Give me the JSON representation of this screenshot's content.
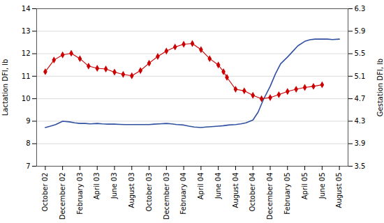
{
  "chart_data": {
    "type": "line",
    "xlim": [
      -0.5,
      17.5
    ],
    "xticks": [
      {
        "value": 0,
        "label": "October 02"
      },
      {
        "value": 1,
        "label": "December 02"
      },
      {
        "value": 2,
        "label": "February 03"
      },
      {
        "value": 3,
        "label": "April 03"
      },
      {
        "value": 4,
        "label": "June 03"
      },
      {
        "value": 5,
        "label": "August 03"
      },
      {
        "value": 6,
        "label": "October 03"
      },
      {
        "value": 7,
        "label": "December 03"
      },
      {
        "value": 8,
        "label": "February 04"
      },
      {
        "value": 9,
        "label": "April 04"
      },
      {
        "value": 10,
        "label": "June 04"
      },
      {
        "value": 11,
        "label": "August 04"
      },
      {
        "value": 12,
        "label": "October 04"
      },
      {
        "value": 13,
        "label": "December 04"
      },
      {
        "value": 14,
        "label": "February 05"
      },
      {
        "value": 15,
        "label": "April 05"
      },
      {
        "value": 16,
        "label": "June 05"
      },
      {
        "value": 17,
        "label": "August 05"
      }
    ],
    "ylabel": "Lactation DFI, lb",
    "ylim": [
      7,
      14
    ],
    "yticks": [
      7,
      8,
      9,
      10,
      11,
      12,
      13,
      14
    ],
    "y2label": "Gestation DFI, lb",
    "y2lim": [
      3.5,
      6.3
    ],
    "y2ticks": [
      3.5,
      3.9,
      4.3,
      4.7,
      5.1,
      5.5,
      5.9,
      6.3
    ],
    "grid": true,
    "series": [
      {
        "color": "#3050A0",
        "line_style": "solid",
        "x": [
          0,
          0.3,
          0.6,
          1,
          1.4,
          1.7,
          2,
          2.3,
          2.6,
          3,
          3.3,
          3.6,
          4,
          4.3,
          4.6,
          5,
          5.3,
          5.6,
          6,
          6.3,
          6.6,
          7,
          7.3,
          7.6,
          8,
          8.3,
          8.6,
          9,
          9.3,
          9.6,
          10,
          10.3,
          10.6,
          11,
          11.3,
          11.6,
          12,
          12.3,
          12.6,
          13,
          13.3,
          13.6,
          14,
          14.3,
          14.6,
          15,
          15.3,
          15.6,
          16,
          16.3,
          16.6,
          17
        ],
        "values": [
          8.72,
          8.78,
          8.85,
          9.0,
          8.97,
          8.93,
          8.9,
          8.9,
          8.88,
          8.9,
          8.88,
          8.87,
          8.87,
          8.86,
          8.85,
          8.85,
          8.85,
          8.85,
          8.85,
          8.87,
          8.88,
          8.9,
          8.88,
          8.85,
          8.83,
          8.78,
          8.74,
          8.72,
          8.74,
          8.76,
          8.78,
          8.8,
          8.83,
          8.85,
          8.88,
          8.93,
          9.05,
          9.4,
          9.95,
          10.55,
          11.1,
          11.55,
          11.85,
          12.1,
          12.35,
          12.55,
          12.62,
          12.65,
          12.65,
          12.65,
          12.63,
          12.65
        ]
      },
      {
        "color": "#CC0000",
        "line_style": "solid",
        "marker": "diamond",
        "x": [
          0,
          0.5,
          1,
          1.5,
          2,
          2.5,
          3,
          3.5,
          4,
          4.5,
          5,
          5.5,
          6,
          6.5,
          7,
          7.5,
          8,
          8.5,
          9,
          9.5,
          10,
          10.3,
          10.5,
          11,
          11.5,
          12,
          12.5,
          13,
          13.5,
          14,
          14.5,
          15,
          15.5,
          16
        ],
        "values": [
          11.2,
          11.72,
          11.95,
          12.02,
          11.78,
          11.45,
          11.35,
          11.32,
          11.18,
          11.08,
          11.02,
          11.25,
          11.58,
          11.88,
          12.12,
          12.3,
          12.42,
          12.45,
          12.18,
          11.78,
          11.5,
          11.2,
          10.95,
          10.42,
          10.35,
          10.15,
          10.0,
          10.05,
          10.18,
          10.32,
          10.42,
          10.5,
          10.55,
          10.62
        ]
      }
    ]
  }
}
